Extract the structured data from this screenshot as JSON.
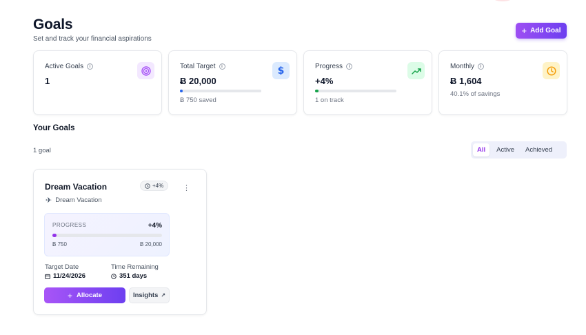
{
  "header": {
    "title": "Goals",
    "subtitle": "Set and track your financial aspirations",
    "add_goal_label": "Add Goal"
  },
  "currency_symbol": "Ƀ",
  "stats": [
    {
      "label": "Active Goals",
      "value": "1",
      "icon": "target-icon",
      "accent": "#a855f7"
    },
    {
      "label": "Total Target",
      "value": "Ƀ 20,000",
      "sub": "Ƀ 750 saved",
      "progress": 0.0375,
      "icon": "dollar-icon",
      "accent": "#2563eb"
    },
    {
      "label": "Progress",
      "value": "+4%",
      "sub": "1 on track",
      "progress": 0.04,
      "icon": "trending-up-icon",
      "accent": "#16a34a"
    },
    {
      "label": "Monthly",
      "value": "Ƀ 1,604",
      "sub": "40.1% of savings",
      "icon": "clock-icon",
      "accent": "#f59e0b"
    }
  ],
  "goals_section": {
    "title": "Your Goals",
    "count_label": "1 goal",
    "filters": [
      {
        "label": "All",
        "active": true
      },
      {
        "label": "Active",
        "active": false
      },
      {
        "label": "Achieved",
        "active": false
      }
    ]
  },
  "goal": {
    "name": "Dream Vacation",
    "badge": "+4%",
    "category": "Dream Vacation",
    "category_icon": "airplane-icon",
    "progress_label": "PROGRESS",
    "progress_percent": "+4%",
    "progress": 0.0375,
    "saved": "750",
    "target": "20,000",
    "target_date_label": "Target Date",
    "target_date": "11/24/2026",
    "time_remaining_label": "Time Remaining",
    "time_remaining": "351 days",
    "allocate_label": "Allocate",
    "insights_label": "Insights"
  }
}
